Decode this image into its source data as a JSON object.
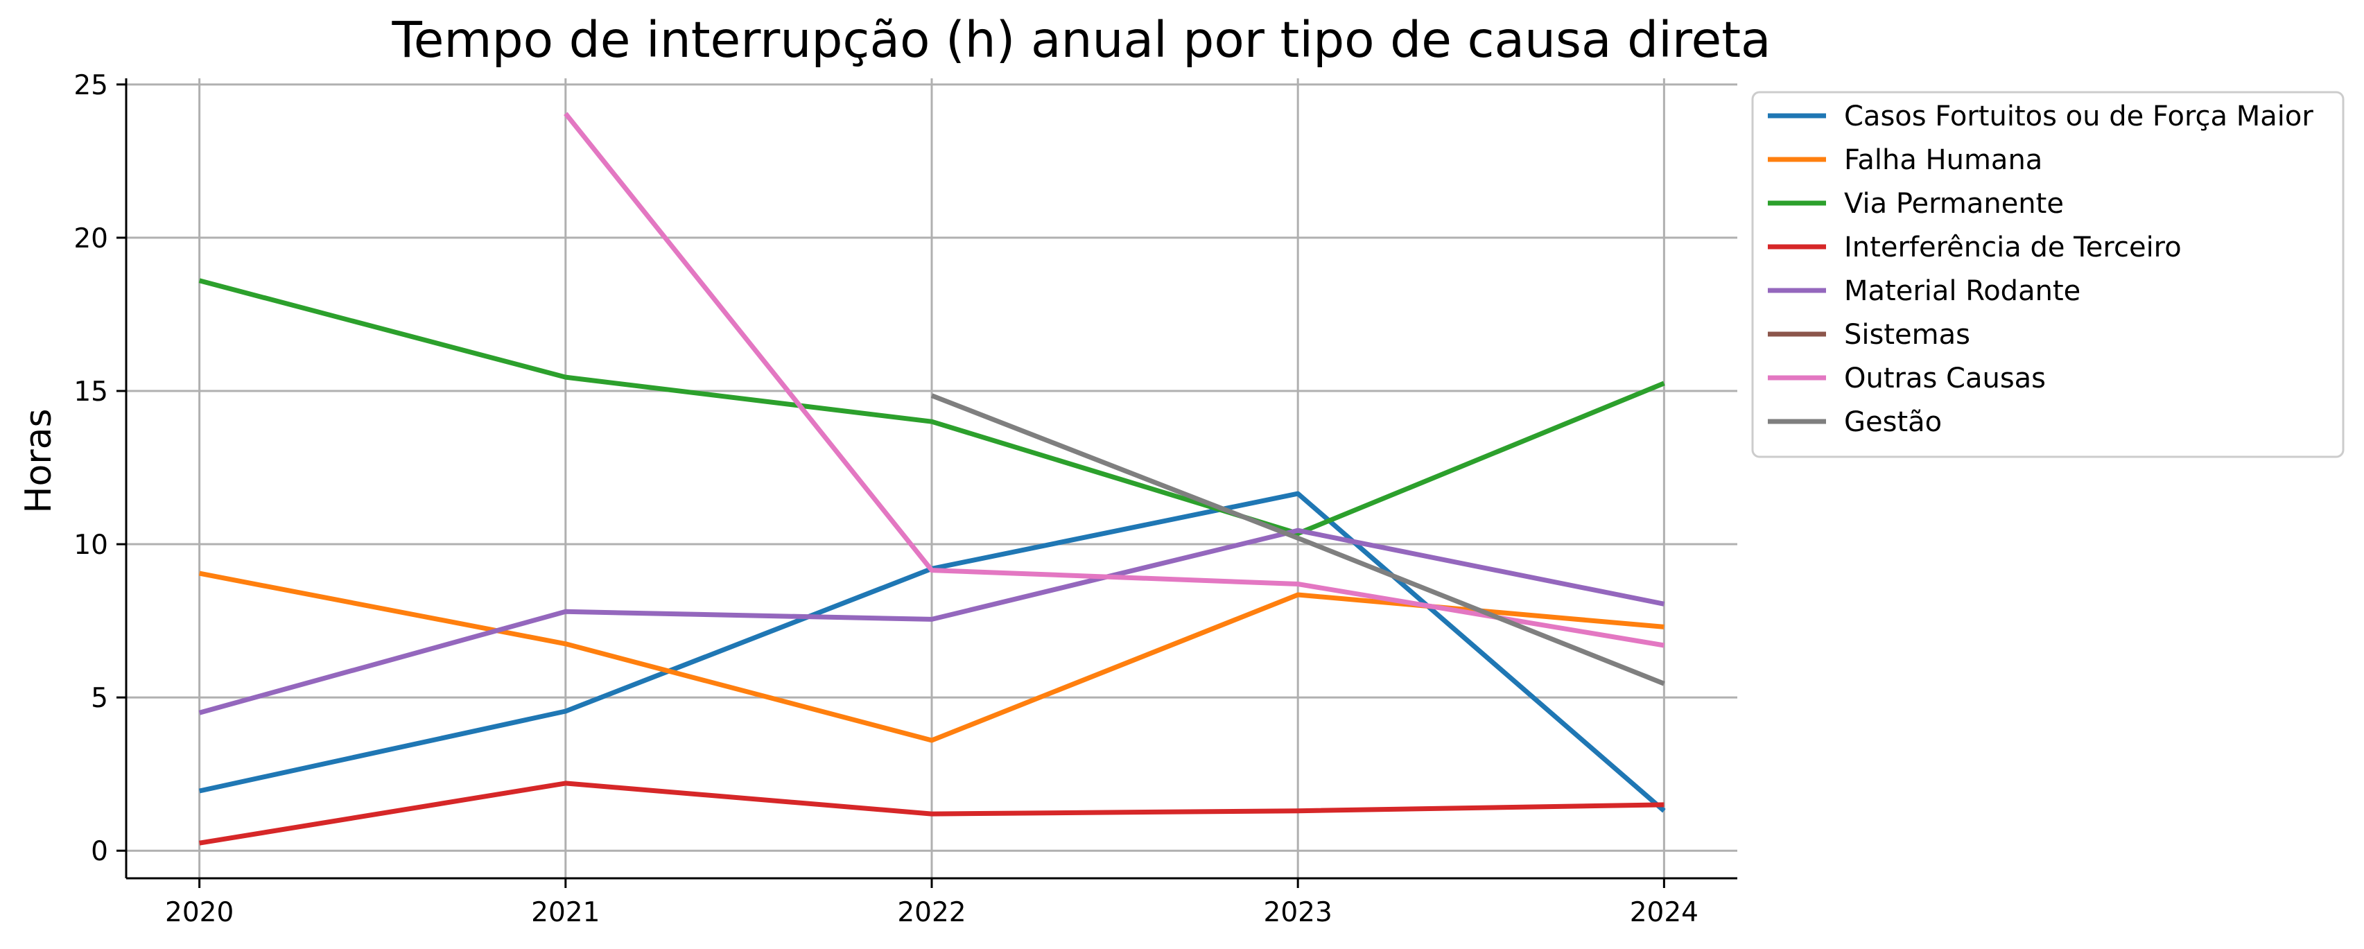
{
  "chart_data": {
    "type": "line",
    "title": "Tempo de interrupção (h) anual por tipo de causa direta",
    "xlabel": "",
    "ylabel": "Horas",
    "x": [
      2020,
      2021,
      2022,
      2023,
      2024
    ],
    "x_tick_labels": [
      "2020",
      "2021",
      "2022",
      "2023",
      "2024"
    ],
    "ylim": [
      -0.9,
      25.2
    ],
    "y_ticks": [
      0,
      5,
      10,
      15,
      20,
      25
    ],
    "y_tick_labels": [
      "0",
      "5",
      "10",
      "15",
      "20",
      "25"
    ],
    "grid": true,
    "legend_position": "outside-top-right",
    "series": [
      {
        "name": "Casos Fortuitos ou de Força Maior",
        "color": "#1f77b4",
        "values": [
          1.95,
          4.55,
          9.2,
          11.65,
          1.3
        ]
      },
      {
        "name": "Falha Humana",
        "color": "#ff7f0e",
        "values": [
          9.05,
          6.75,
          3.6,
          8.35,
          7.3
        ]
      },
      {
        "name": "Via Permanente",
        "color": "#2ca02c",
        "values": [
          18.6,
          15.45,
          14.0,
          10.35,
          15.25
        ]
      },
      {
        "name": "Interferência de Terceiro",
        "color": "#d62728",
        "values": [
          0.25,
          2.2,
          1.2,
          1.3,
          1.5
        ]
      },
      {
        "name": "Material Rodante",
        "color": "#9467bd",
        "values": [
          4.5,
          7.8,
          7.55,
          10.45,
          8.05
        ]
      },
      {
        "name": "Sistemas",
        "color": "#8c564b",
        "values": [
          null,
          null,
          null,
          null,
          null
        ]
      },
      {
        "name": "Outras Causas",
        "color": "#e377c2",
        "values": [
          null,
          24.05,
          9.15,
          8.7,
          6.7
        ]
      },
      {
        "name": "Gestão",
        "color": "#7f7f7f",
        "values": [
          null,
          null,
          14.85,
          10.2,
          5.45
        ]
      }
    ]
  }
}
